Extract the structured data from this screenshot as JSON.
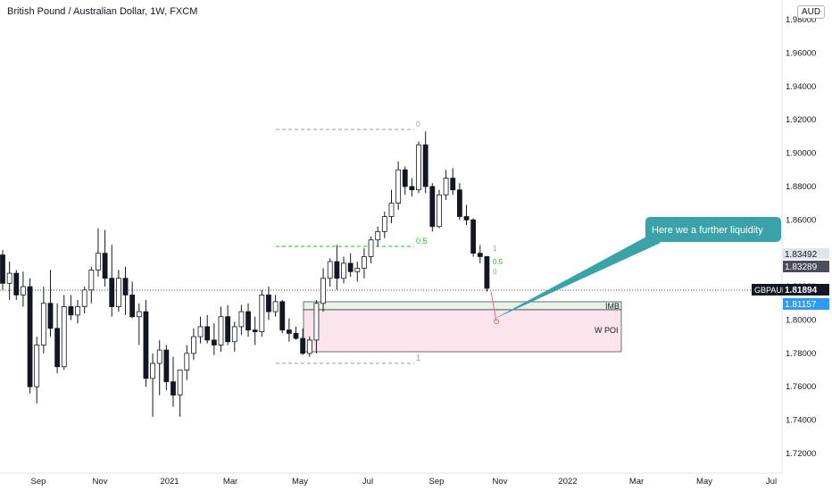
{
  "title": "British Pound / Australian Dollar, 1W, FXCM",
  "chart_data": {
    "type": "candlestick",
    "symbol": "GBPAUD",
    "timeframe": "1W",
    "source": "FXCM",
    "currency_unit": "AUD",
    "ylim": [
      1.71,
      1.99
    ],
    "y_ticks": [
      "1.98000",
      "1.96000",
      "1.94000",
      "1.92000",
      "1.90000",
      "1.88000",
      "1.86000",
      "1.84000",
      "1.82000",
      "1.80000",
      "1.78000",
      "1.76000",
      "1.74000",
      "1.72000"
    ],
    "x_ticks": [
      "Sep",
      "Nov",
      "2021",
      "Mar",
      "May",
      "Jul",
      "Sep",
      "Nov",
      "2022",
      "Mar",
      "May",
      "Jul"
    ],
    "last_price": "1.81894",
    "price_labels": {
      "upper_a": "1.83492",
      "upper_b": "1.83289",
      "current": "1.81894",
      "lower": "1.81157"
    },
    "candles": [
      [
        1.839,
        1.842,
        1.818,
        1.822
      ],
      [
        1.822,
        1.835,
        1.812,
        1.828
      ],
      [
        1.828,
        1.83,
        1.812,
        1.815
      ],
      [
        1.815,
        1.829,
        1.808,
        1.82
      ],
      [
        1.82,
        1.825,
        1.756,
        1.76
      ],
      [
        1.76,
        1.79,
        1.75,
        1.785
      ],
      [
        1.785,
        1.82,
        1.78,
        1.81
      ],
      [
        1.81,
        1.83,
        1.79,
        1.795
      ],
      [
        1.795,
        1.81,
        1.768,
        1.772
      ],
      [
        1.772,
        1.815,
        1.77,
        1.808
      ],
      [
        1.808,
        1.815,
        1.8,
        1.803
      ],
      [
        1.803,
        1.812,
        1.798,
        1.808
      ],
      [
        1.808,
        1.82,
        1.804,
        1.818
      ],
      [
        1.818,
        1.832,
        1.81,
        1.83
      ],
      [
        1.83,
        1.855,
        1.826,
        1.84
      ],
      [
        1.84,
        1.854,
        1.82,
        1.825
      ],
      [
        1.825,
        1.845,
        1.802,
        1.808
      ],
      [
        1.808,
        1.83,
        1.805,
        1.825
      ],
      [
        1.825,
        1.832,
        1.803,
        1.815
      ],
      [
        1.815,
        1.823,
        1.801,
        1.802
      ],
      [
        1.802,
        1.81,
        1.785,
        1.805
      ],
      [
        1.805,
        1.812,
        1.76,
        1.765
      ],
      [
        1.765,
        1.78,
        1.742,
        1.774
      ],
      [
        1.774,
        1.788,
        1.755,
        1.782
      ],
      [
        1.782,
        1.785,
        1.758,
        1.763
      ],
      [
        1.763,
        1.778,
        1.748,
        1.755
      ],
      [
        1.755,
        1.77,
        1.742,
        1.77
      ],
      [
        1.77,
        1.785,
        1.764,
        1.78
      ],
      [
        1.78,
        1.795,
        1.776,
        1.79
      ],
      [
        1.79,
        1.802,
        1.786,
        1.796
      ],
      [
        1.796,
        1.803,
        1.786,
        1.788
      ],
      [
        1.788,
        1.798,
        1.779,
        1.785
      ],
      [
        1.785,
        1.808,
        1.781,
        1.802
      ],
      [
        1.802,
        1.809,
        1.785,
        1.787
      ],
      [
        1.787,
        1.799,
        1.781,
        1.796
      ],
      [
        1.796,
        1.809,
        1.791,
        1.805
      ],
      [
        1.805,
        1.81,
        1.79,
        1.794
      ],
      [
        1.794,
        1.802,
        1.785,
        1.793
      ],
      [
        1.793,
        1.818,
        1.79,
        1.815
      ],
      [
        1.815,
        1.82,
        1.8,
        1.805
      ],
      [
        1.805,
        1.815,
        1.802,
        1.811
      ],
      [
        1.811,
        1.812,
        1.792,
        1.794
      ],
      [
        1.794,
        1.801,
        1.787,
        1.792
      ],
      [
        1.792,
        1.796,
        1.788,
        1.789
      ],
      [
        1.789,
        1.795,
        1.779,
        1.78
      ],
      [
        1.78,
        1.79,
        1.778,
        1.788
      ],
      [
        1.788,
        1.812,
        1.78,
        1.81
      ],
      [
        1.81,
        1.831,
        1.805,
        1.825
      ],
      [
        1.825,
        1.837,
        1.82,
        1.835
      ],
      [
        1.835,
        1.845,
        1.818,
        1.825
      ],
      [
        1.825,
        1.838,
        1.822,
        1.834
      ],
      [
        1.834,
        1.84,
        1.826,
        1.829
      ],
      [
        1.829,
        1.835,
        1.823,
        1.831
      ],
      [
        1.831,
        1.843,
        1.825,
        1.838
      ],
      [
        1.838,
        1.85,
        1.834,
        1.848
      ],
      [
        1.848,
        1.856,
        1.844,
        1.853
      ],
      [
        1.853,
        1.865,
        1.849,
        1.862
      ],
      [
        1.862,
        1.878,
        1.858,
        1.87
      ],
      [
        1.87,
        1.895,
        1.866,
        1.89
      ],
      [
        1.89,
        1.892,
        1.875,
        1.88
      ],
      [
        1.88,
        1.885,
        1.874,
        1.878
      ],
      [
        1.878,
        1.907,
        1.876,
        1.905
      ],
      [
        1.905,
        1.913,
        1.876,
        1.88
      ],
      [
        1.88,
        1.882,
        1.853,
        1.856
      ],
      [
        1.856,
        1.878,
        1.855,
        1.875
      ],
      [
        1.875,
        1.89,
        1.872,
        1.885
      ],
      [
        1.885,
        1.891,
        1.875,
        1.878
      ],
      [
        1.878,
        1.882,
        1.86,
        1.862
      ],
      [
        1.862,
        1.869,
        1.857,
        1.86
      ],
      [
        1.86,
        1.861,
        1.838,
        1.84
      ],
      [
        1.84,
        1.845,
        1.834,
        1.838
      ],
      [
        1.838,
        1.838,
        1.817,
        1.819
      ]
    ]
  },
  "annotations": {
    "fib_0": "0",
    "fib_05": "0.5",
    "fib_1": "1",
    "fib2_1": "1",
    "fib2_05": "0.5",
    "fib2_0": "0",
    "imb_label": "IMB",
    "poi_label": "W POI",
    "callout": "Here we a further liquidity"
  },
  "colors": {
    "bull_body": "#ffffff",
    "bear_body": "#131722",
    "candle_outline": "#131722",
    "callout": "#3aa3a8",
    "fib_mid": "#22c322",
    "imb_fill": "#e6f3e6",
    "poi_fill": "#fce4ec",
    "current_label": "#131722",
    "lower_label": "#2e9bf0"
  }
}
